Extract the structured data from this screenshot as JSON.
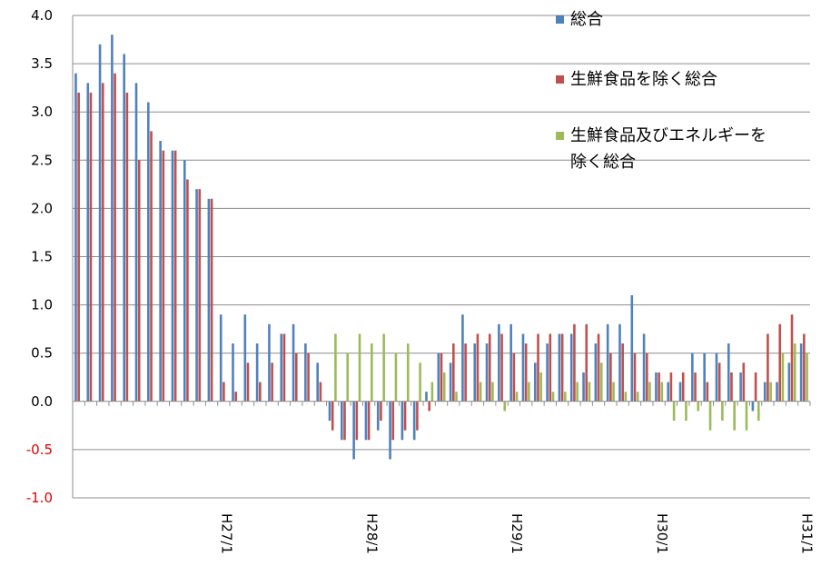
{
  "chart_data": {
    "type": "bar",
    "title": "",
    "xlabel": "",
    "ylabel": "",
    "ylim": [
      -1.0,
      4.0
    ],
    "yticks": [
      "4.0",
      "3.5",
      "3.0",
      "2.5",
      "2.0",
      "1.5",
      "1.0",
      "0.5",
      "0.0",
      "-0.5",
      "-1.0"
    ],
    "ytick_values": [
      4.0,
      3.5,
      3.0,
      2.5,
      2.0,
      1.5,
      1.0,
      0.5,
      0.0,
      -0.5,
      -1.0
    ],
    "negative_tick_color": "#e00000",
    "grid": true,
    "legend_position": "right",
    "x_labels": [
      {
        "label": "H27/1",
        "index": 12
      },
      {
        "label": "H28/1",
        "index": 24
      },
      {
        "label": "H29/1",
        "index": 36
      },
      {
        "label": "H30/1",
        "index": 48
      },
      {
        "label": "H31/1",
        "index": 60
      }
    ],
    "n_months": 61,
    "series": [
      {
        "name": "総合",
        "color": "#4f81bd",
        "start_index": 0,
        "values": [
          3.4,
          3.3,
          3.7,
          3.8,
          3.6,
          3.3,
          3.1,
          2.7,
          2.6,
          2.5,
          2.2,
          2.1,
          0.9,
          0.6,
          0.9,
          0.6,
          0.8,
          0.7,
          0.8,
          0.6,
          0.4,
          -0.2,
          -0.4,
          -0.6,
          -0.4,
          -0.3,
          -0.6,
          -0.4,
          -0.4,
          0.1,
          0.5,
          0.4,
          0.9,
          0.6,
          0.6,
          0.8,
          0.8,
          0.7,
          0.4,
          0.6,
          0.7,
          0.7,
          0.3,
          0.6,
          0.8,
          0.8,
          1.1,
          0.7,
          0.3,
          0.2,
          0.2,
          0.5,
          0.5,
          0.5,
          0.6,
          0.3,
          -0.1,
          0.2,
          0.2,
          0.4,
          0.6
        ]
      },
      {
        "name": "生鮮食品を除く総合",
        "color": "#c0504d",
        "start_index": 0,
        "values": [
          3.2,
          3.2,
          3.3,
          3.4,
          3.2,
          2.5,
          2.8,
          2.6,
          2.6,
          2.3,
          2.2,
          2.1,
          0.2,
          0.1,
          0.4,
          0.2,
          0.4,
          0.7,
          0.5,
          0.5,
          0.2,
          -0.3,
          -0.4,
          -0.4,
          -0.4,
          -0.2,
          -0.4,
          -0.3,
          -0.3,
          -0.1,
          0.5,
          0.6,
          0.6,
          0.7,
          0.7,
          0.7,
          0.5,
          0.6,
          0.7,
          0.7,
          0.7,
          0.8,
          0.8,
          0.7,
          0.5,
          0.6,
          0.5,
          0.5,
          0.3,
          0.3,
          0.3,
          0.3,
          0.2,
          0.4,
          0.3,
          0.4,
          0.3,
          0.7,
          0.8,
          0.9,
          0.7
        ]
      },
      {
        "name": "生鮮食品及びエネルギーを除く総合",
        "color": "#9bbb59",
        "start_index": 21,
        "values": [
          0.7,
          0.5,
          0.7,
          0.6,
          0.7,
          0.5,
          0.6,
          0.4,
          0.2,
          0.3,
          0.1,
          0.0,
          0.2,
          0.2,
          -0.1,
          0.1,
          0.2,
          0.3,
          0.1,
          0.1,
          0.2,
          0.2,
          0.4,
          0.2,
          0.1,
          0.1,
          0.2,
          0.2,
          -0.2,
          -0.2,
          -0.1,
          -0.3,
          -0.2,
          -0.3,
          -0.3,
          -0.2,
          0.2,
          0.5,
          0.6,
          0.5
        ]
      }
    ],
    "legend_lines": [
      [
        "総合"
      ],
      [
        "生鮮食品を除く総合"
      ],
      [
        "生鮮食品及びエネルギーを",
        "除く総合"
      ]
    ]
  }
}
